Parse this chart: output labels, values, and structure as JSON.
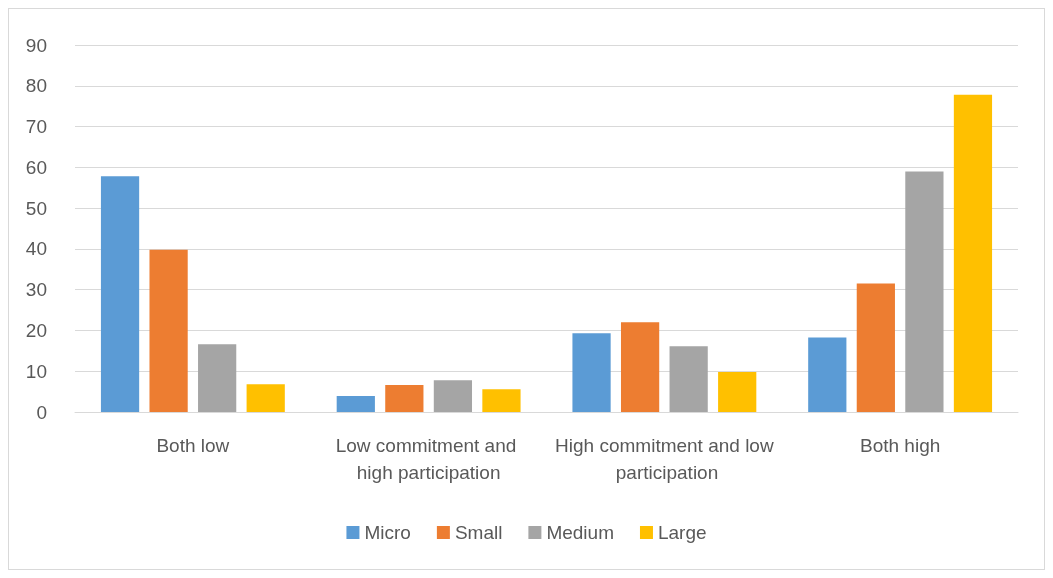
{
  "chart_data": {
    "type": "bar",
    "categories": [
      "Both low",
      "Low commitment and high participation",
      "High commitment and low participation",
      "Both high"
    ],
    "series": [
      {
        "name": "Micro",
        "color": "#5b9bd5",
        "values": [
          57.8,
          3.9,
          19.3,
          18.3
        ]
      },
      {
        "name": "Small",
        "color": "#ed7d31",
        "values": [
          39.8,
          6.6,
          22,
          31.5
        ]
      },
      {
        "name": "Medium",
        "color": "#a5a5a5",
        "values": [
          16.6,
          7.8,
          16.1,
          59
        ]
      },
      {
        "name": "Large",
        "color": "#ffc000",
        "values": [
          6.8,
          5.6,
          9.8,
          77.8
        ]
      }
    ],
    "ylim": [
      0,
      90
    ],
    "yticks": [
      0,
      10,
      20,
      30,
      40,
      50,
      60,
      70,
      80,
      90
    ],
    "grid": "y",
    "legend": "bottom"
  }
}
